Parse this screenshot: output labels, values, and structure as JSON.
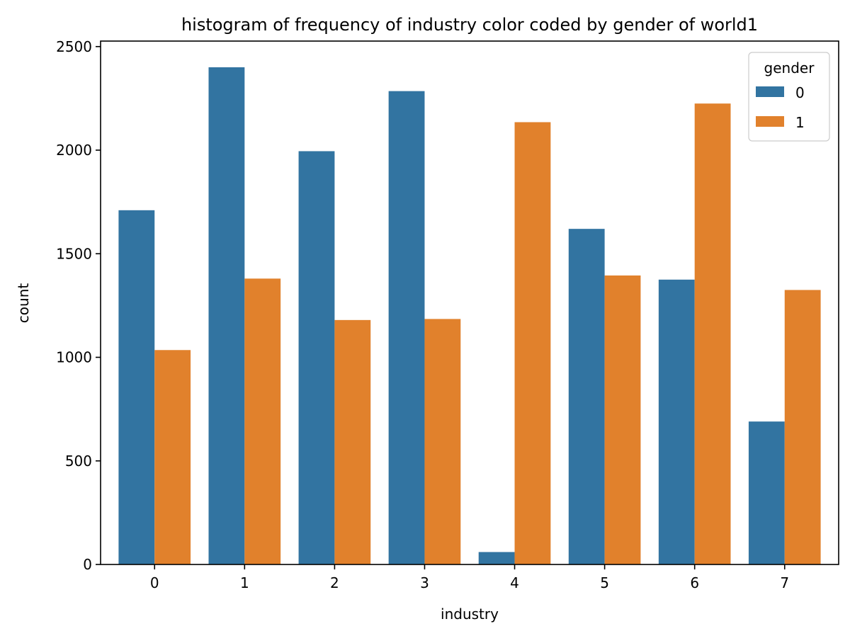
{
  "chart_data": {
    "type": "bar",
    "title": "histogram of frequency of industry color coded by gender of world1",
    "xlabel": "industry",
    "ylabel": "count",
    "categories": [
      "0",
      "1",
      "2",
      "3",
      "4",
      "5",
      "6",
      "7"
    ],
    "ylim": [
      0,
      2520
    ],
    "yticks": [
      0,
      500,
      1000,
      1500,
      2000,
      2500
    ],
    "legend": {
      "title": "gender",
      "placement": "top-right"
    },
    "grid": false,
    "series": [
      {
        "name": "0",
        "color": "#3274a1",
        "values": [
          1710,
          2400,
          1995,
          2285,
          60,
          1620,
          1375,
          690
        ]
      },
      {
        "name": "1",
        "color": "#e1812c",
        "values": [
          1035,
          1380,
          1180,
          1185,
          2135,
          1395,
          2225,
          1325
        ]
      }
    ]
  }
}
